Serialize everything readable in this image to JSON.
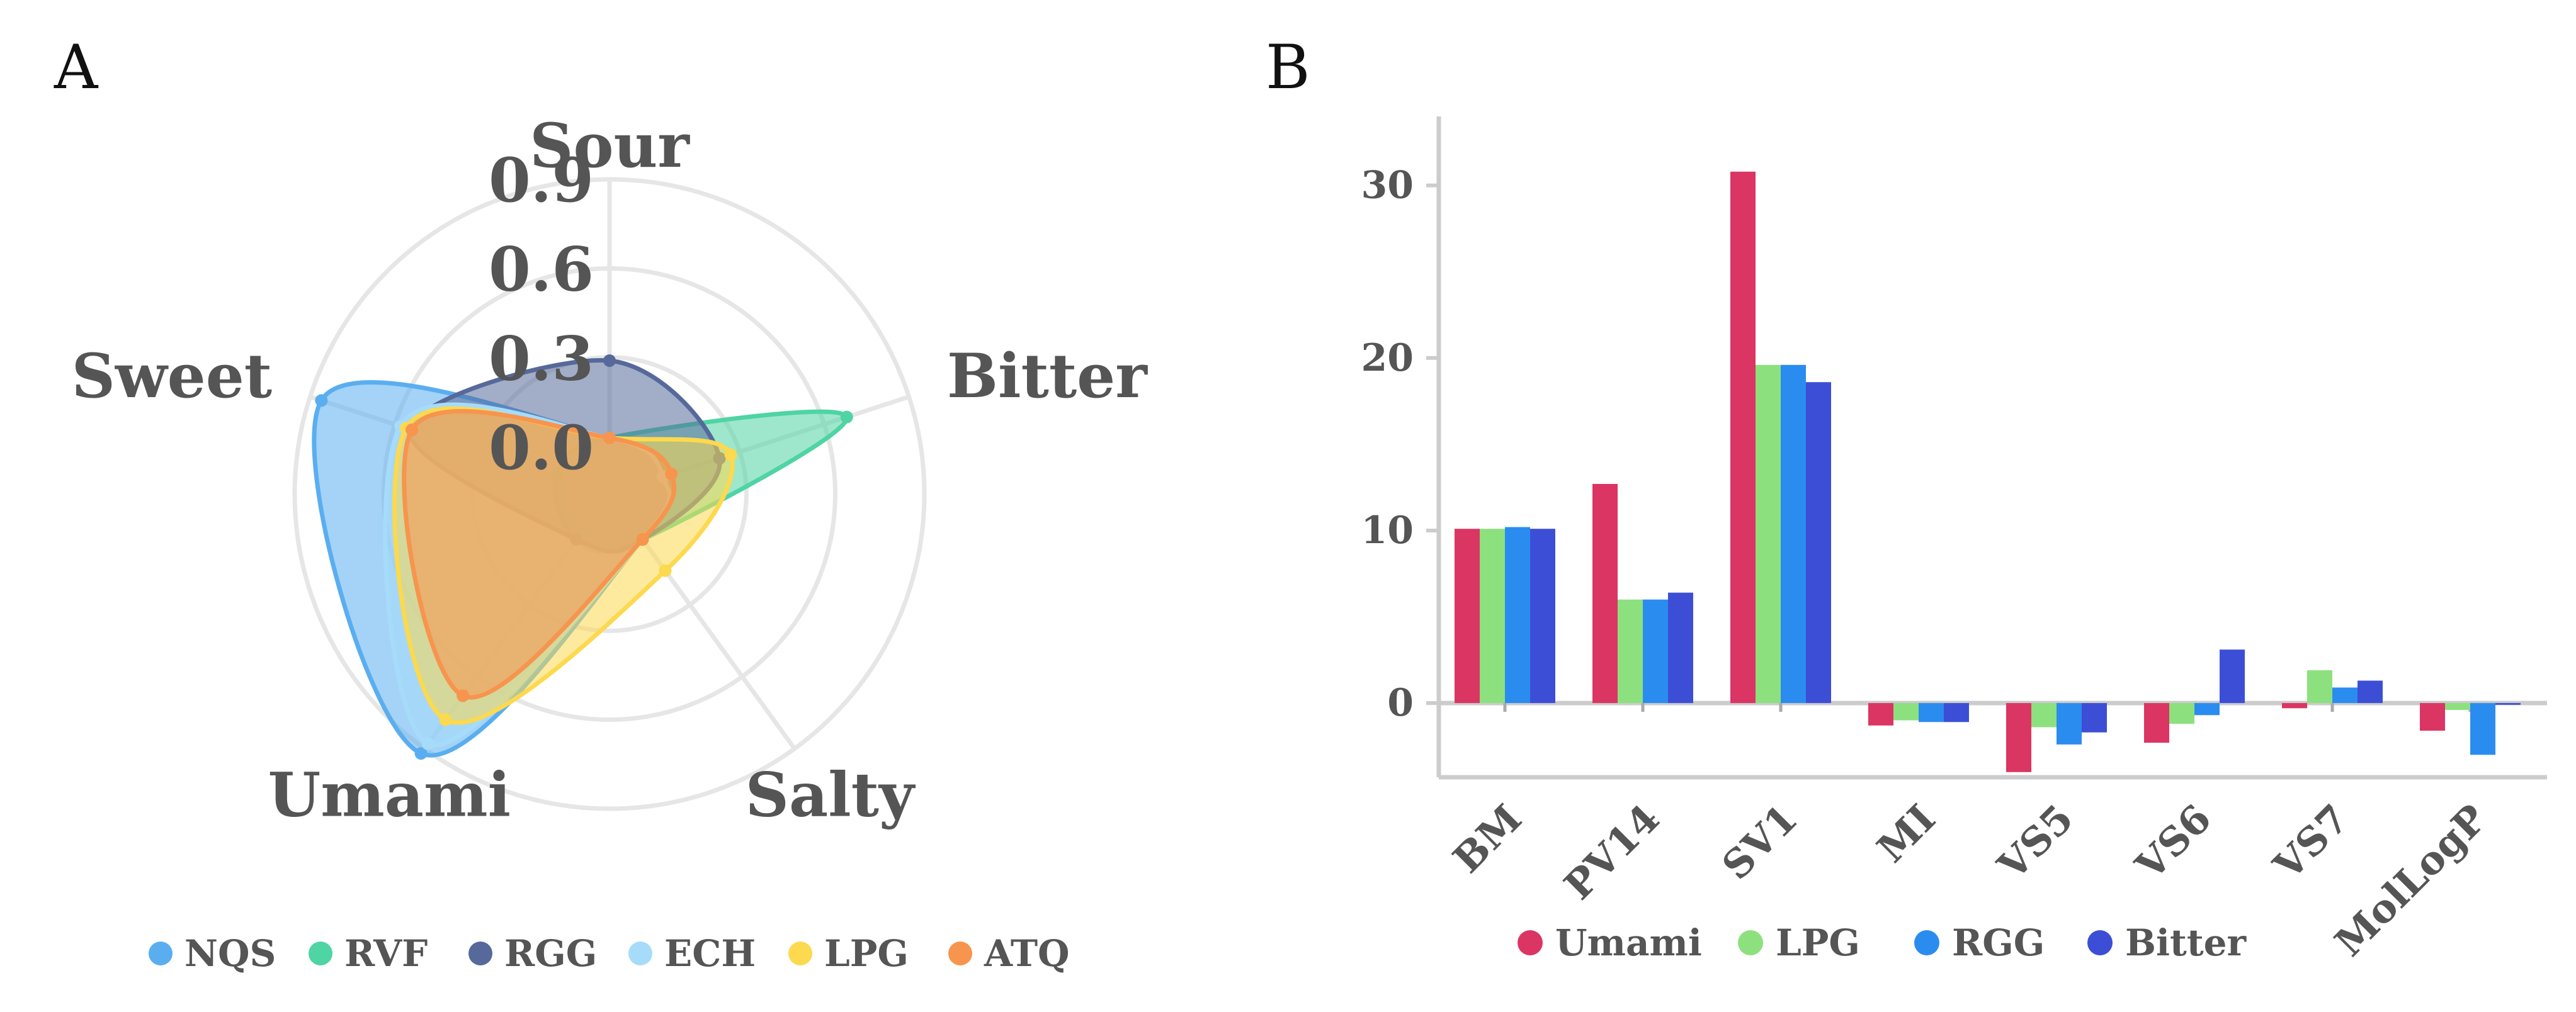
{
  "panels": {
    "a_label": "A",
    "b_label": "B"
  },
  "chart_data": [
    {
      "type": "radar",
      "panel": "A",
      "axes": [
        "Sour",
        "Bitter",
        "Salty",
        "Umami",
        "Sweet"
      ],
      "radial_ticks": [
        "0.9",
        "0.6",
        "0.3",
        "0.0"
      ],
      "rlim": [
        0.0,
        0.9
      ],
      "grid": true,
      "legend_position": "bottom",
      "series": [
        {
          "name": "NQS",
          "color": "#5aaef0",
          "values": [
            0.03,
            0.03,
            0.03,
            0.92,
            0.86
          ]
        },
        {
          "name": "RVF",
          "color": "#4fd4a4",
          "values": [
            0.03,
            0.68,
            0.03,
            0.03,
            0.03
          ]
        },
        {
          "name": "RGG",
          "color": "#56699a",
          "values": [
            0.29,
            0.23,
            0.03,
            0.03,
            0.55
          ]
        },
        {
          "name": "ECH",
          "color": "#a6dcf9",
          "values": [
            0.03,
            0.03,
            0.03,
            0.88,
            0.58
          ]
        },
        {
          "name": "LPG",
          "color": "#fcd94e",
          "values": [
            0.03,
            0.27,
            0.16,
            0.78,
            0.56
          ]
        },
        {
          "name": "ATQ",
          "color": "#f7944e",
          "values": [
            0.03,
            0.06,
            0.03,
            0.68,
            0.54
          ]
        }
      ]
    },
    {
      "type": "bar",
      "panel": "B",
      "categories": [
        "BM",
        "PV14",
        "SV1",
        "MI",
        "VS5",
        "VS6",
        "VS7",
        "MolLogP"
      ],
      "yticks": [
        "30",
        "20",
        "10",
        "0"
      ],
      "ylim": [
        -4.3,
        34
      ],
      "legend_position": "bottom",
      "series": [
        {
          "name": "Umami",
          "color": "#db3563",
          "values": [
            10.1,
            12.7,
            30.8,
            -1.3,
            -4.0,
            -2.3,
            -0.3,
            -1.6
          ]
        },
        {
          "name": "LPG",
          "color": "#8de07e",
          "values": [
            10.1,
            6.0,
            19.6,
            -1.0,
            -1.4,
            -1.2,
            1.9,
            -0.4
          ]
        },
        {
          "name": "RGG",
          "color": "#2b8cf0",
          "values": [
            10.2,
            6.0,
            19.6,
            -1.1,
            -2.4,
            -0.7,
            0.9,
            -3.0
          ]
        },
        {
          "name": "Bitter",
          "color": "#3d4ed6",
          "values": [
            10.1,
            6.4,
            18.6,
            -1.1,
            -1.7,
            3.1,
            1.3,
            -0.1
          ]
        }
      ]
    }
  ]
}
